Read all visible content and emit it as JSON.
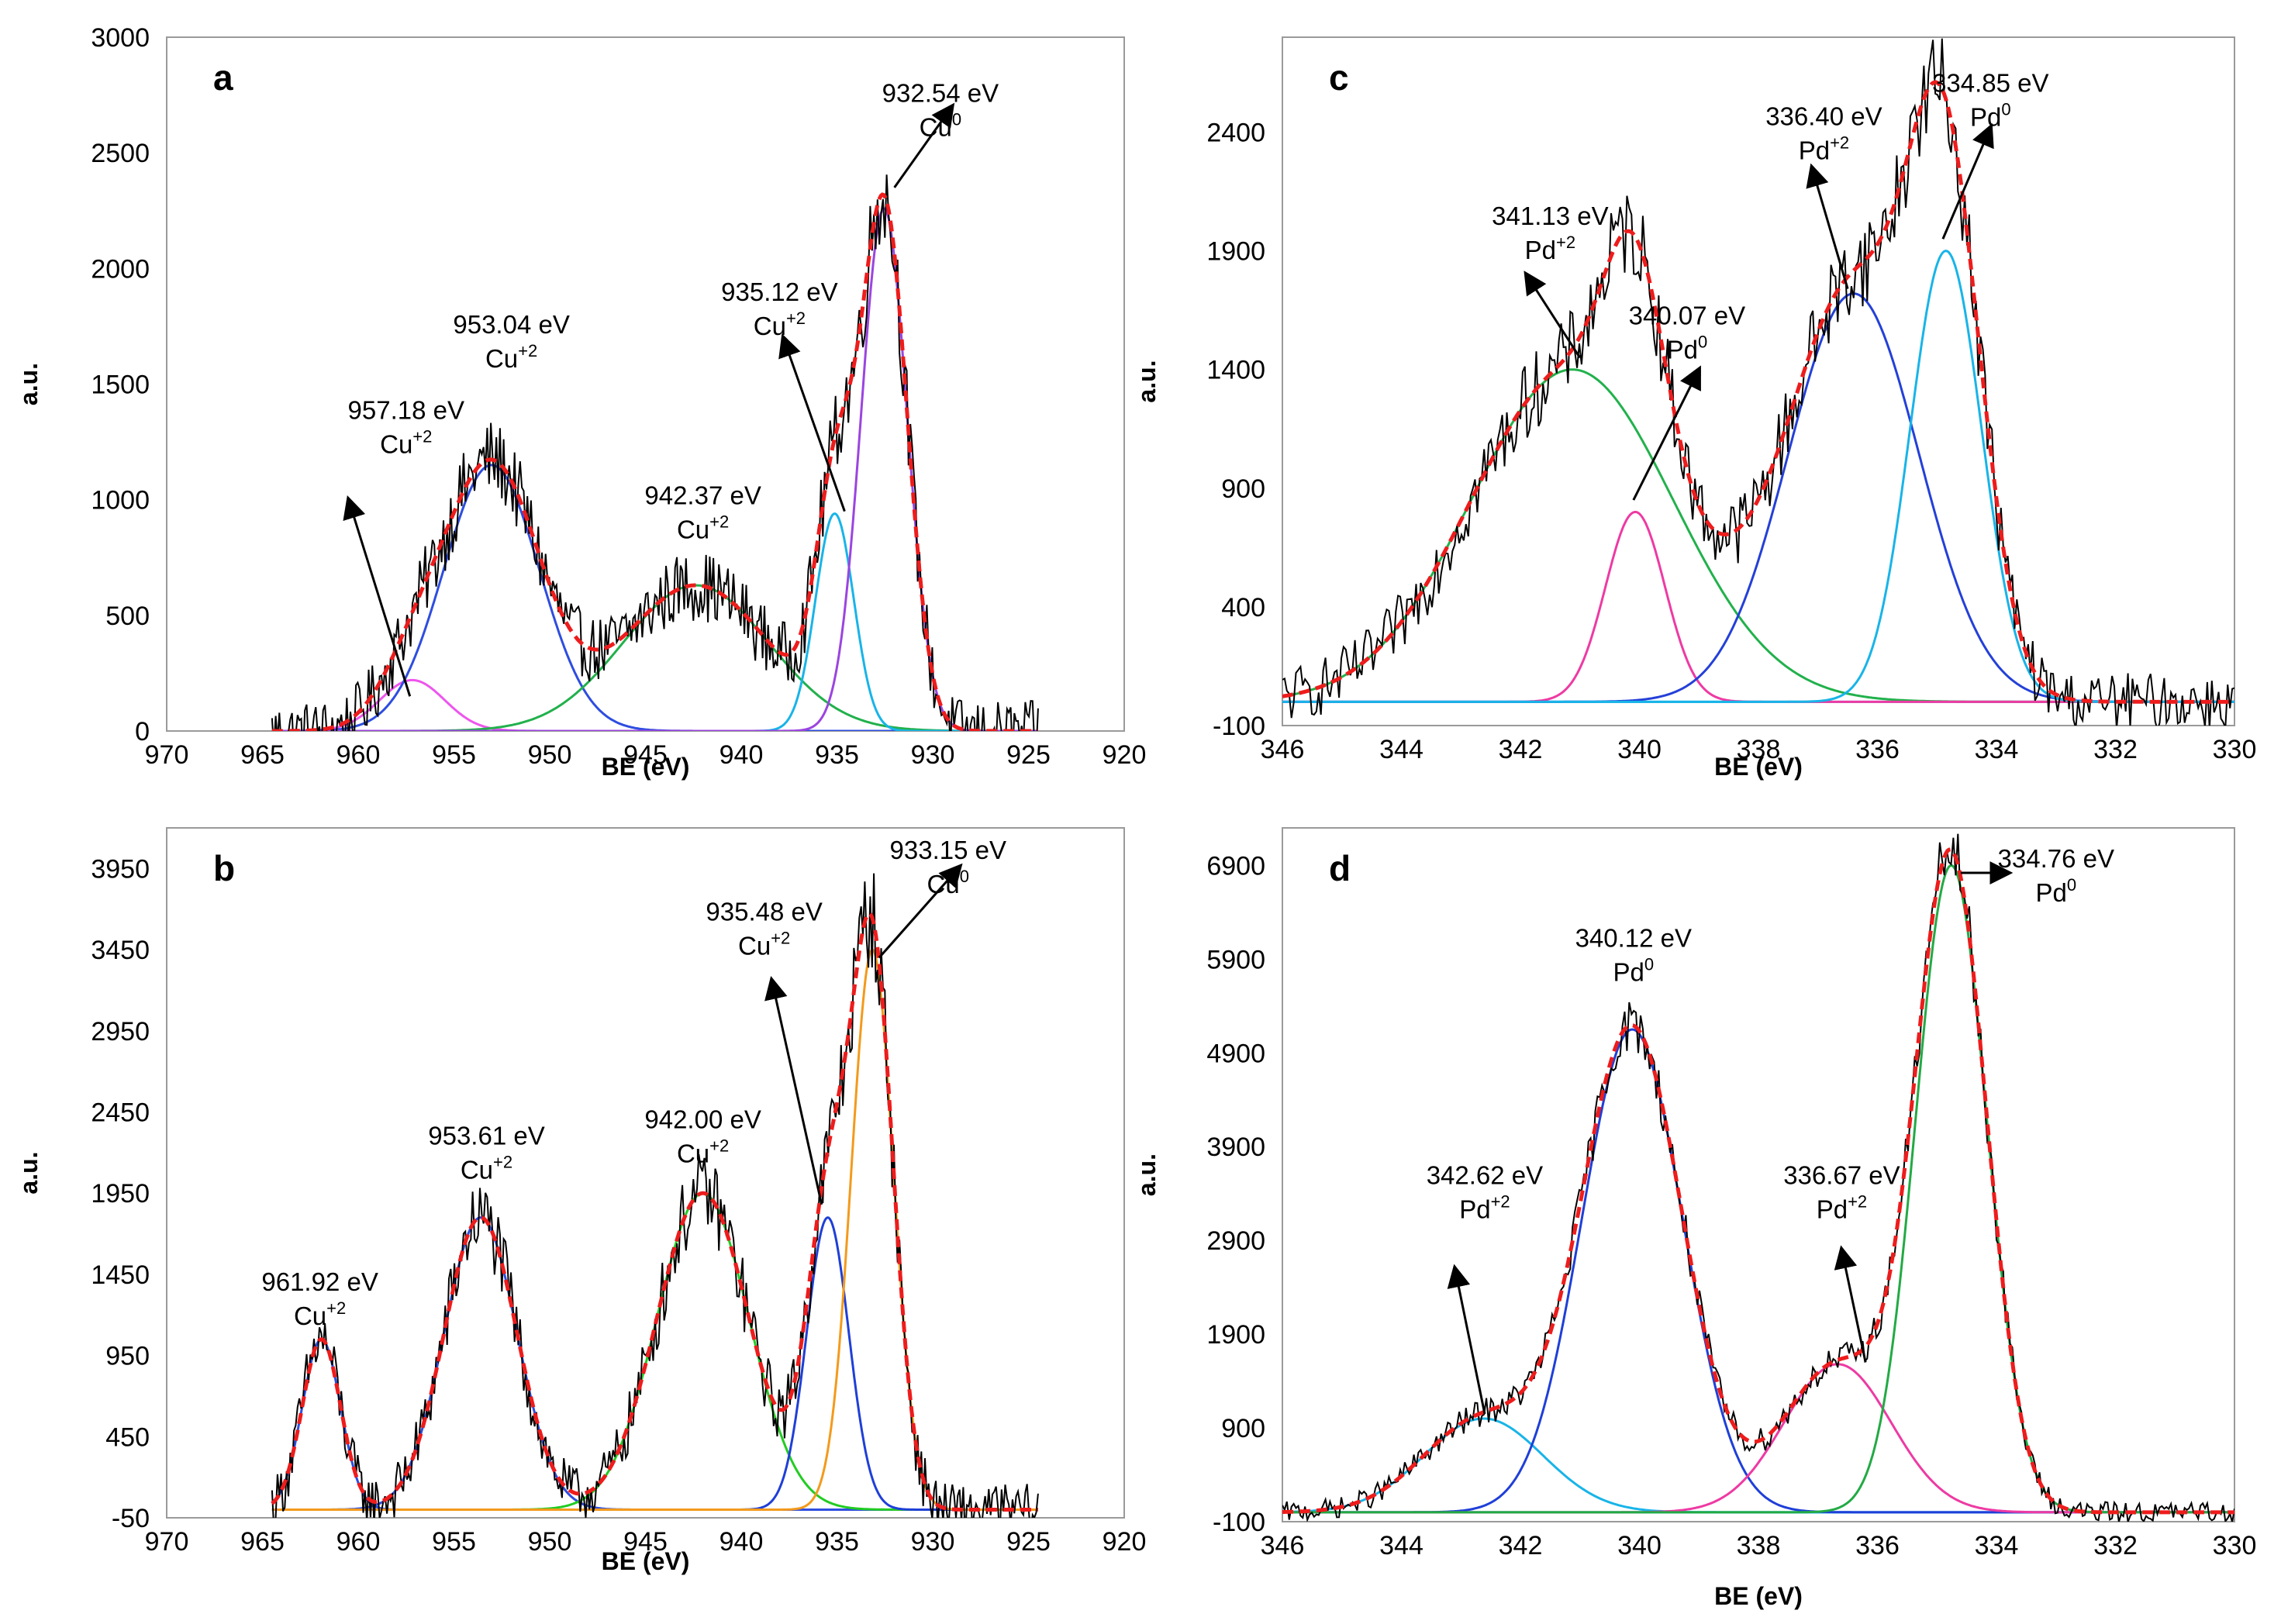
{
  "chart_data": [
    {
      "panel": "a",
      "type": "line",
      "xlabel": "BE (eV)",
      "ylabel": "a.u.",
      "xlim": [
        970,
        920
      ],
      "ylim": [
        0,
        3000
      ],
      "x_ticks": [
        970,
        965,
        960,
        955,
        950,
        945,
        940,
        935,
        930,
        925,
        920
      ],
      "y_ticks": [
        0,
        500,
        1000,
        1500,
        2000,
        2500,
        3000
      ],
      "noise_amplitude": 130,
      "x_range": [
        964.5,
        924.5
      ],
      "series": [
        {
          "center": 957.18,
          "amplitude": 220,
          "sigma": 1.7,
          "color": "#ee55ee"
        },
        {
          "center": 953.04,
          "amplitude": 1150,
          "sigma": 2.5,
          "color": "#2e4de0"
        },
        {
          "center": 942.37,
          "amplitude": 630,
          "sigma": 3.8,
          "color": "#22b14c"
        },
        {
          "center": 935.12,
          "amplitude": 940,
          "sigma": 1.0,
          "color": "#18b4e8"
        },
        {
          "center": 932.54,
          "amplitude": 2260,
          "sigma": 1.2,
          "color": "#9b45e0"
        }
      ],
      "annotations": [
        {
          "energy": "957.18 eV",
          "species": "Cu",
          "charge": "+2",
          "label_x": 957.5,
          "label_y": 1350,
          "arrow_from": [
            957.3,
            150
          ],
          "arrow_to": [
            960.5,
            1000
          ]
        },
        {
          "energy": "953.04 eV",
          "species": "Cu",
          "charge": "+2",
          "label_x": 952.0,
          "label_y": 1720,
          "arrow_from": null,
          "arrow_to": null
        },
        {
          "energy": "942.37 eV",
          "species": "Cu",
          "charge": "+2",
          "label_x": 942.0,
          "label_y": 980,
          "arrow_from": null,
          "arrow_to": null
        },
        {
          "energy": "935.12 eV",
          "species": "Cu",
          "charge": "+2",
          "label_x": 938.0,
          "label_y": 1860,
          "arrow_from": [
            934.6,
            950
          ],
          "arrow_to": [
            937.8,
            1700
          ]
        },
        {
          "energy": "932.54 eV",
          "species": "Cu",
          "charge": "0",
          "label_x": 929.6,
          "label_y": 2720,
          "arrow_from": [
            932.0,
            2350
          ],
          "arrow_to": [
            929.0,
            2700
          ]
        }
      ]
    },
    {
      "panel": "b",
      "type": "line",
      "xlabel": "BE (eV)",
      "ylabel": "a.u.",
      "xlim": [
        970,
        920
      ],
      "ylim": [
        -50,
        4200
      ],
      "x_ticks": [
        970,
        965,
        960,
        955,
        950,
        945,
        940,
        935,
        930,
        925,
        920
      ],
      "y_ticks": [
        -50,
        450,
        950,
        1450,
        1950,
        2450,
        2950,
        3450,
        3950
      ],
      "noise_amplitude": 160,
      "x_range": [
        964.5,
        924.5
      ],
      "series": [
        {
          "center": 961.92,
          "amplitude": 1050,
          "sigma": 1.0,
          "color": "#2e4de0"
        },
        {
          "center": 953.61,
          "amplitude": 1800,
          "sigma": 1.9,
          "color": "#2e4de0"
        },
        {
          "center": 942.0,
          "amplitude": 1950,
          "sigma": 2.4,
          "color": "#22cc22"
        },
        {
          "center": 935.48,
          "amplitude": 1800,
          "sigma": 1.1,
          "color": "#1f3fd8"
        },
        {
          "center": 933.15,
          "amplitude": 3450,
          "sigma": 1.1,
          "color": "#f39a1c"
        }
      ],
      "annotations": [
        {
          "energy": "961.92 eV",
          "species": "Cu",
          "charge": "+2",
          "label_x": 962.0,
          "label_y": 1350,
          "arrow_from": null,
          "arrow_to": null
        },
        {
          "energy": "953.61 eV",
          "species": "Cu",
          "charge": "+2",
          "label_x": 953.3,
          "label_y": 2250,
          "arrow_from": null,
          "arrow_to": null
        },
        {
          "energy": "942.00 eV",
          "species": "Cu",
          "charge": "+2",
          "label_x": 942.0,
          "label_y": 2350,
          "arrow_from": null,
          "arrow_to": null
        },
        {
          "energy": "935.48 eV",
          "species": "Cu",
          "charge": "+2",
          "label_x": 938.8,
          "label_y": 3630,
          "arrow_from": [
            935.8,
            1880
          ],
          "arrow_to": [
            938.4,
            3260
          ]
        },
        {
          "energy": "933.15 eV",
          "species": "Cu",
          "charge": "0",
          "label_x": 929.2,
          "label_y": 4010,
          "arrow_from": [
            932.8,
            3400
          ],
          "arrow_to": [
            928.6,
            3960
          ]
        }
      ]
    },
    {
      "panel": "c",
      "type": "line",
      "xlabel": "BE (eV)",
      "ylabel": "a.u.",
      "xlim": [
        346,
        330
      ],
      "ylim": [
        -100,
        2800
      ],
      "x_ticks": [
        346,
        344,
        342,
        340,
        338,
        336,
        334,
        332,
        330
      ],
      "y_ticks": [
        -100,
        400,
        900,
        1400,
        1900,
        2400
      ],
      "noise_amplitude": 120,
      "x_range": [
        346.0,
        330.0
      ],
      "series": [
        {
          "center": 341.13,
          "amplitude": 1400,
          "sigma": 1.7,
          "color": "#22b14c"
        },
        {
          "center": 340.07,
          "amplitude": 800,
          "sigma": 0.5,
          "color": "#ee3aa3"
        },
        {
          "center": 336.4,
          "amplitude": 1720,
          "sigma": 1.1,
          "color": "#2440d8"
        },
        {
          "center": 334.85,
          "amplitude": 1900,
          "sigma": 0.6,
          "color": "#18b4e8"
        }
      ],
      "annotations": [
        {
          "energy": "341.13 eV",
          "species": "Pd",
          "charge": "+2",
          "label_x": 341.5,
          "label_y": 2010,
          "arrow_from": [
            341.0,
            1450
          ],
          "arrow_to": [
            341.9,
            1800
          ]
        },
        {
          "energy": "340.07 eV",
          "species": "Pd",
          "charge": "0",
          "label_x": 339.2,
          "label_y": 1590,
          "arrow_from": [
            340.1,
            850
          ],
          "arrow_to": [
            339.0,
            1400
          ]
        },
        {
          "energy": "336.40 eV",
          "species": "Pd",
          "charge": "+2",
          "label_x": 336.9,
          "label_y": 2430,
          "arrow_from": [
            336.5,
            1740
          ],
          "arrow_to": [
            337.1,
            2250
          ]
        },
        {
          "energy": "334.85 eV",
          "species": "Pd",
          "charge": "0",
          "label_x": 334.1,
          "label_y": 2570,
          "arrow_from": [
            334.9,
            1950
          ],
          "arrow_to": [
            334.1,
            2420
          ]
        }
      ]
    },
    {
      "panel": "d",
      "type": "line",
      "xlabel": "BE (eV)",
      "ylabel": "a.u.",
      "xlim": [
        346,
        330
      ],
      "ylim": [
        -100,
        7300
      ],
      "x_ticks": [
        346,
        344,
        342,
        340,
        338,
        336,
        334,
        332,
        330
      ],
      "y_ticks": [
        -100,
        900,
        1900,
        2900,
        3900,
        4900,
        5900,
        6900
      ],
      "noise_amplitude": 110,
      "x_range": [
        346.0,
        330.0
      ],
      "series": [
        {
          "center": 342.62,
          "amplitude": 1000,
          "sigma": 1.0,
          "color": "#18b4e8"
        },
        {
          "center": 340.12,
          "amplitude": 5150,
          "sigma": 0.85,
          "color": "#1f3fd8"
        },
        {
          "center": 336.67,
          "amplitude": 1580,
          "sigma": 0.9,
          "color": "#ee3aa3"
        },
        {
          "center": 334.76,
          "amplitude": 6900,
          "sigma": 0.6,
          "color": "#22aa44"
        }
      ],
      "annotations": [
        {
          "energy": "342.62 eV",
          "species": "Pd",
          "charge": "+2",
          "label_x": 342.6,
          "label_y": 3500,
          "arrow_from": [
            342.6,
            1050
          ],
          "arrow_to": [
            343.1,
            2600
          ]
        },
        {
          "energy": "340.12 eV",
          "species": "Pd",
          "charge": "0",
          "label_x": 340.1,
          "label_y": 6030,
          "arrow_from": null,
          "arrow_to": null
        },
        {
          "energy": "336.67 eV",
          "species": "Pd",
          "charge": "+2",
          "label_x": 336.6,
          "label_y": 3500,
          "arrow_from": [
            336.2,
            1600
          ],
          "arrow_to": [
            336.6,
            2800
          ]
        },
        {
          "energy": "334.76 eV",
          "species": "Pd",
          "charge": "0",
          "label_x": 333.0,
          "label_y": 6880,
          "arrow_from": [
            334.6,
            6820
          ],
          "arrow_to": [
            333.8,
            6820
          ]
        }
      ]
    }
  ]
}
